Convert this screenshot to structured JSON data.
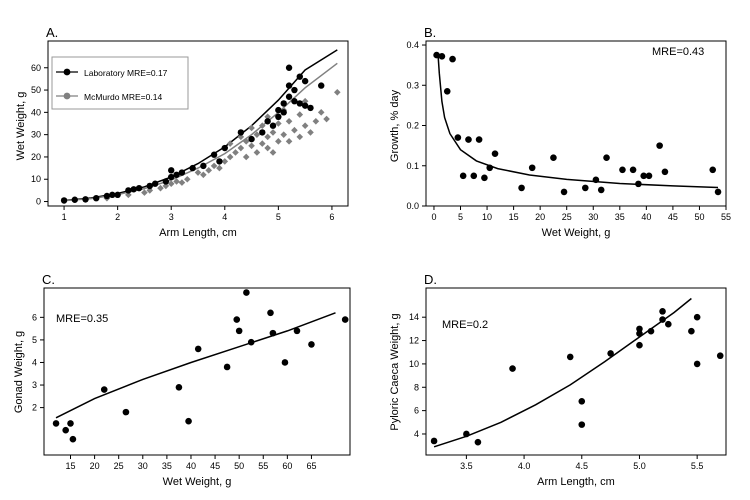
{
  "chart_data": [
    {
      "type": "scatter",
      "panel_label": "A.",
      "xlabel": "Arm Length, cm",
      "ylabel": "Wet Weight, g",
      "xlim": [
        0.7,
        6.3
      ],
      "ylim": [
        -2,
        72
      ],
      "x_ticks": [
        1,
        2,
        3,
        4,
        5,
        6
      ],
      "y_ticks": [
        0,
        10,
        20,
        30,
        40,
        50,
        60
      ],
      "legend_position": "top-left",
      "series": [
        {
          "name": "Laboratory MRE=0.17",
          "marker": "circle",
          "color": "#000000",
          "points": [
            [
              1.0,
              0.5
            ],
            [
              1.2,
              0.8
            ],
            [
              1.4,
              1.0
            ],
            [
              1.6,
              1.5
            ],
            [
              1.8,
              2.5
            ],
            [
              1.9,
              3.0
            ],
            [
              2.0,
              3.0
            ],
            [
              2.2,
              5.0
            ],
            [
              2.3,
              5.5
            ],
            [
              2.4,
              6.0
            ],
            [
              2.6,
              7.0
            ],
            [
              2.7,
              8.0
            ],
            [
              2.9,
              9.0
            ],
            [
              3.0,
              11.0
            ],
            [
              3.0,
              14.0
            ],
            [
              3.1,
              12.0
            ],
            [
              3.2,
              13.0
            ],
            [
              3.4,
              15.0
            ],
            [
              3.6,
              16.0
            ],
            [
              3.8,
              21.0
            ],
            [
              3.9,
              18.0
            ],
            [
              4.0,
              24.0
            ],
            [
              4.3,
              31.0
            ],
            [
              4.5,
              28.0
            ],
            [
              4.7,
              31.0
            ],
            [
              4.8,
              36.0
            ],
            [
              4.9,
              34.0
            ],
            [
              5.0,
              38.0
            ],
            [
              5.0,
              41.0
            ],
            [
              5.1,
              40.0
            ],
            [
              5.1,
              44.0
            ],
            [
              5.2,
              47.0
            ],
            [
              5.2,
              52.0
            ],
            [
              5.2,
              60.0
            ],
            [
              5.3,
              45.0
            ],
            [
              5.3,
              50.0
            ],
            [
              5.4,
              44.0
            ],
            [
              5.4,
              56.0
            ],
            [
              5.5,
              43.0
            ],
            [
              5.5,
              54.0
            ],
            [
              5.6,
              42.0
            ],
            [
              5.8,
              52.0
            ]
          ]
        },
        {
          "name": "McMurdo MRE=0.14",
          "marker": "diamond",
          "color": "#808080",
          "points": [
            [
              1.0,
              0.3
            ],
            [
              1.4,
              0.8
            ],
            [
              1.8,
              1.5
            ],
            [
              2.2,
              3.0
            ],
            [
              2.5,
              4.0
            ],
            [
              2.6,
              5.0
            ],
            [
              2.8,
              6.0
            ],
            [
              2.9,
              7.0
            ],
            [
              3.0,
              8.0
            ],
            [
              3.1,
              9.0
            ],
            [
              3.2,
              8.5
            ],
            [
              3.3,
              10.0
            ],
            [
              3.5,
              13.0
            ],
            [
              3.6,
              12.0
            ],
            [
              3.7,
              14.0
            ],
            [
              3.8,
              16.0
            ],
            [
              3.9,
              15.0
            ],
            [
              4.0,
              18.0
            ],
            [
              4.1,
              20.0
            ],
            [
              4.1,
              26.0
            ],
            [
              4.2,
              22.0
            ],
            [
              4.3,
              24.0
            ],
            [
              4.3,
              29.0
            ],
            [
              4.4,
              20.0
            ],
            [
              4.4,
              27.0
            ],
            [
              4.5,
              25.0
            ],
            [
              4.5,
              33.0
            ],
            [
              4.6,
              22.0
            ],
            [
              4.6,
              30.0
            ],
            [
              4.7,
              26.0
            ],
            [
              4.7,
              34.0
            ],
            [
              4.8,
              24.0
            ],
            [
              4.8,
              29.0
            ],
            [
              4.8,
              38.0
            ],
            [
              4.9,
              22.0
            ],
            [
              4.9,
              31.0
            ],
            [
              5.0,
              27.0
            ],
            [
              5.0,
              35.0
            ],
            [
              5.1,
              30.0
            ],
            [
              5.1,
              41.0
            ],
            [
              5.2,
              27.0
            ],
            [
              5.2,
              36.0
            ],
            [
              5.3,
              32.0
            ],
            [
              5.4,
              29.0
            ],
            [
              5.4,
              39.0
            ],
            [
              5.5,
              34.0
            ],
            [
              5.5,
              45.0
            ],
            [
              5.6,
              31.0
            ],
            [
              5.7,
              36.0
            ],
            [
              5.8,
              40.0
            ],
            [
              5.9,
              37.0
            ],
            [
              6.1,
              49.0
            ]
          ]
        }
      ],
      "fits": [
        {
          "name": "Laboratory MRE=0.17",
          "color": "#000000",
          "points": [
            [
              1.0,
              0.5
            ],
            [
              1.5,
              1.6
            ],
            [
              2.0,
              3.6
            ],
            [
              2.5,
              6.6
            ],
            [
              3.0,
              11.0
            ],
            [
              3.5,
              17.0
            ],
            [
              4.0,
              24.5
            ],
            [
              4.5,
              34.0
            ],
            [
              5.0,
              45.5
            ],
            [
              5.5,
              59.0
            ],
            [
              6.1,
              68.0
            ]
          ]
        },
        {
          "name": "McMurdo MRE=0.14",
          "color": "#808080",
          "points": [
            [
              1.0,
              0.4
            ],
            [
              1.5,
              1.3
            ],
            [
              2.0,
              3.1
            ],
            [
              2.5,
              5.8
            ],
            [
              3.0,
              9.6
            ],
            [
              3.5,
              15.0
            ],
            [
              4.0,
              21.5
            ],
            [
              4.5,
              30.0
            ],
            [
              5.0,
              40.0
            ],
            [
              5.5,
              51.0
            ],
            [
              6.1,
              62.0
            ]
          ]
        }
      ]
    },
    {
      "type": "scatter",
      "panel_label": "B.",
      "xlabel": "Wet Weight, g",
      "ylabel": "Growth, % day",
      "annotation": "MRE=0.43",
      "xlim": [
        -1.5,
        55
      ],
      "ylim": [
        0,
        0.41
      ],
      "x_ticks": [
        0,
        5,
        10,
        15,
        20,
        25,
        30,
        35,
        40,
        45,
        50,
        55
      ],
      "y_ticks": [
        0.0,
        0.1,
        0.2,
        0.3,
        0.4
      ],
      "y_tick_labels": [
        "0.0",
        "0.1",
        "0.2",
        "0.3",
        "0.4"
      ],
      "points": [
        [
          0.5,
          0.375
        ],
        [
          1.5,
          0.372
        ],
        [
          2.5,
          0.285
        ],
        [
          3.5,
          0.365
        ],
        [
          4.5,
          0.17
        ],
        [
          5.5,
          0.075
        ],
        [
          6.5,
          0.165
        ],
        [
          7.5,
          0.075
        ],
        [
          8.5,
          0.165
        ],
        [
          9.5,
          0.07
        ],
        [
          10.5,
          0.095
        ],
        [
          11.5,
          0.13
        ],
        [
          16.5,
          0.045
        ],
        [
          18.5,
          0.095
        ],
        [
          22.5,
          0.12
        ],
        [
          24.5,
          0.035
        ],
        [
          28.5,
          0.045
        ],
        [
          30.5,
          0.065
        ],
        [
          31.5,
          0.04
        ],
        [
          32.5,
          0.12
        ],
        [
          35.5,
          0.09
        ],
        [
          37.5,
          0.09
        ],
        [
          38.5,
          0.055
        ],
        [
          39.5,
          0.075
        ],
        [
          40.5,
          0.075
        ],
        [
          42.5,
          0.15
        ],
        [
          43.5,
          0.085
        ],
        [
          52.5,
          0.09
        ],
        [
          53.5,
          0.035
        ]
      ],
      "fit": [
        [
          0.8,
          0.37
        ],
        [
          1.0,
          0.33
        ],
        [
          1.5,
          0.26
        ],
        [
          2.0,
          0.22
        ],
        [
          3.0,
          0.18
        ],
        [
          5.0,
          0.14
        ],
        [
          8.0,
          0.112
        ],
        [
          12.0,
          0.093
        ],
        [
          18.0,
          0.077
        ],
        [
          25.0,
          0.066
        ],
        [
          35.0,
          0.056
        ],
        [
          45.0,
          0.05
        ],
        [
          53.5,
          0.046
        ]
      ]
    },
    {
      "type": "scatter",
      "panel_label": "C.",
      "xlabel": "Wet Weight, g",
      "ylabel": "Gonad Weight, g",
      "annotation": "MRE=0.35",
      "xlim": [
        9.5,
        73
      ],
      "ylim": [
        -0.1,
        7.3
      ],
      "x_ticks": [
        15,
        20,
        25,
        30,
        35,
        40,
        45,
        50,
        55,
        60,
        65
      ],
      "y_ticks": [
        2,
        3,
        4,
        5,
        6
      ],
      "points": [
        [
          12.0,
          1.3
        ],
        [
          14.0,
          1.0
        ],
        [
          15.0,
          1.3
        ],
        [
          15.5,
          0.6
        ],
        [
          22.0,
          2.8
        ],
        [
          26.5,
          1.8
        ],
        [
          37.5,
          2.9
        ],
        [
          39.5,
          1.4
        ],
        [
          41.5,
          4.6
        ],
        [
          47.5,
          3.8
        ],
        [
          49.5,
          5.9
        ],
        [
          50.0,
          5.4
        ],
        [
          51.5,
          7.1
        ],
        [
          52.5,
          4.9
        ],
        [
          56.5,
          6.2
        ],
        [
          57.0,
          5.3
        ],
        [
          59.5,
          4.0
        ],
        [
          62.0,
          5.4
        ],
        [
          65.0,
          4.8
        ],
        [
          72.0,
          5.9
        ]
      ],
      "fit": [
        [
          12.0,
          1.55
        ],
        [
          20.0,
          2.4
        ],
        [
          30.0,
          3.25
        ],
        [
          40.0,
          4.0
        ],
        [
          50.0,
          4.7
        ],
        [
          60.0,
          5.4
        ],
        [
          70.0,
          6.2
        ]
      ]
    },
    {
      "type": "scatter",
      "panel_label": "D.",
      "xlabel": "Arm Length, cm",
      "ylabel": "Pyloric Caeca Weight, g",
      "annotation": "MRE=0.2",
      "xlim": [
        3.15,
        5.75
      ],
      "ylim": [
        2.2,
        16.5
      ],
      "x_ticks": [
        3.5,
        4.0,
        4.5,
        5.0,
        5.5
      ],
      "x_tick_labels": [
        "3.5",
        "4.0",
        "4.5",
        "5.0",
        "5.5"
      ],
      "y_ticks": [
        4,
        6,
        8,
        10,
        12,
        14
      ],
      "points": [
        [
          3.22,
          3.4
        ],
        [
          3.5,
          4.0
        ],
        [
          3.6,
          3.3
        ],
        [
          3.9,
          9.6
        ],
        [
          4.4,
          10.6
        ],
        [
          4.5,
          6.8
        ],
        [
          4.5,
          4.8
        ],
        [
          4.75,
          10.9
        ],
        [
          5.0,
          13.0
        ],
        [
          5.0,
          12.6
        ],
        [
          5.0,
          11.6
        ],
        [
          5.1,
          12.8
        ],
        [
          5.2,
          14.5
        ],
        [
          5.2,
          13.8
        ],
        [
          5.25,
          13.4
        ],
        [
          5.45,
          12.8
        ],
        [
          5.5,
          14.0
        ],
        [
          5.5,
          10.0
        ],
        [
          5.7,
          10.7
        ]
      ],
      "fit": [
        [
          3.22,
          2.9
        ],
        [
          3.5,
          3.8
        ],
        [
          3.8,
          5.0
        ],
        [
          4.1,
          6.5
        ],
        [
          4.4,
          8.2
        ],
        [
          4.7,
          10.2
        ],
        [
          5.0,
          12.3
        ],
        [
          5.3,
          14.4
        ],
        [
          5.45,
          15.6
        ]
      ]
    }
  ]
}
